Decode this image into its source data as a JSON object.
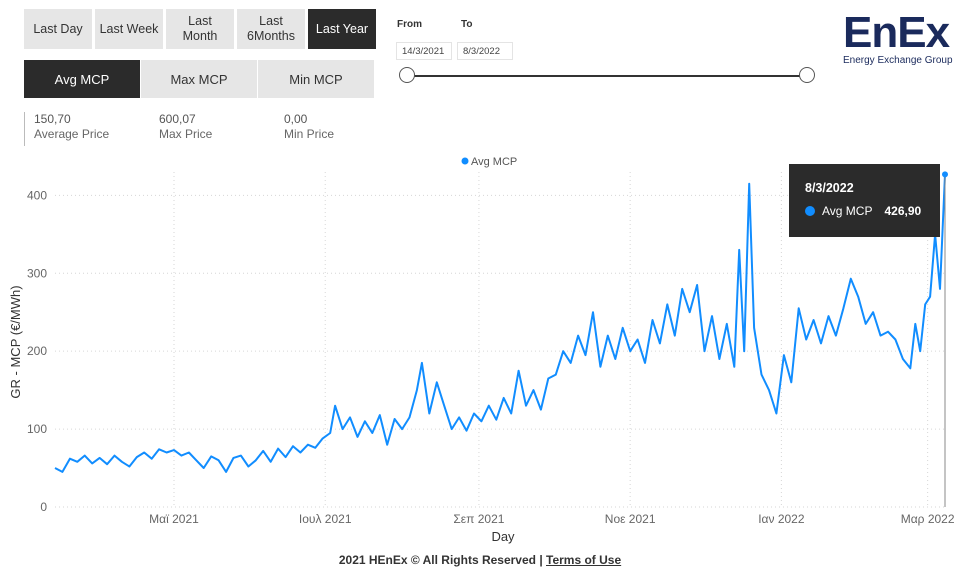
{
  "period_buttons": [
    {
      "label": "Last Day",
      "active": false
    },
    {
      "label": "Last Week",
      "active": false
    },
    {
      "label": "Last\nMonth",
      "active": false
    },
    {
      "label": "Last\n6Months",
      "active": false
    },
    {
      "label": "Last Year",
      "active": true
    }
  ],
  "metric_buttons": [
    {
      "label": "Avg MCP",
      "active": true
    },
    {
      "label": "Max MCP",
      "active": false
    },
    {
      "label": "Min MCP",
      "active": false
    }
  ],
  "stats": [
    {
      "value": "150,70",
      "label": "Average Price"
    },
    {
      "value": "600,07",
      "label": "Max Price"
    },
    {
      "value": "0,00",
      "label": "Min Price"
    }
  ],
  "range": {
    "from_label": "From",
    "to_label": "To",
    "from_value": "14/3/2021",
    "to_value": "8/3/2022"
  },
  "logo": {
    "main": "EnEx",
    "sub": "Energy Exchange Group"
  },
  "tooltip": {
    "date": "8/3/2022",
    "series": "Avg MCP",
    "value": "426,90"
  },
  "footer": {
    "text": "2021 HEnEx © All Rights Reserved | ",
    "link": "Terms of Use"
  },
  "colors": {
    "series": "#118dff",
    "dark": "#2b2b2b"
  },
  "chart_data": {
    "type": "line",
    "title": "",
    "xlabel": "Day",
    "ylabel": "GR - MCP (€/MWh)",
    "legend": "Avg MCP",
    "legend_position": "top-center",
    "grid": true,
    "ylim": [
      0,
      430
    ],
    "yticks": [
      0,
      100,
      200,
      300,
      400
    ],
    "xlim": [
      "2021-03-14",
      "2022-03-08"
    ],
    "xticks": [
      {
        "date": "2021-05-01",
        "label": "Μαϊ 2021"
      },
      {
        "date": "2021-07-01",
        "label": "Ιουλ 2021"
      },
      {
        "date": "2021-09-01",
        "label": "Σεπ 2021"
      },
      {
        "date": "2021-11-01",
        "label": "Νοε 2021"
      },
      {
        "date": "2022-01-01",
        "label": "Ιαν 2022"
      },
      {
        "date": "2022-03-01",
        "label": "Μαρ 2022"
      }
    ],
    "series": [
      {
        "name": "Avg MCP",
        "points": [
          [
            "2021-03-14",
            50
          ],
          [
            "2021-03-17",
            45
          ],
          [
            "2021-03-20",
            62
          ],
          [
            "2021-03-23",
            58
          ],
          [
            "2021-03-26",
            66
          ],
          [
            "2021-03-29",
            56
          ],
          [
            "2021-04-01",
            63
          ],
          [
            "2021-04-04",
            55
          ],
          [
            "2021-04-07",
            66
          ],
          [
            "2021-04-10",
            58
          ],
          [
            "2021-04-13",
            52
          ],
          [
            "2021-04-16",
            64
          ],
          [
            "2021-04-19",
            70
          ],
          [
            "2021-04-22",
            62
          ],
          [
            "2021-04-25",
            74
          ],
          [
            "2021-04-28",
            70
          ],
          [
            "2021-05-01",
            73
          ],
          [
            "2021-05-04",
            66
          ],
          [
            "2021-05-07",
            70
          ],
          [
            "2021-05-10",
            60
          ],
          [
            "2021-05-13",
            50
          ],
          [
            "2021-05-16",
            65
          ],
          [
            "2021-05-19",
            60
          ],
          [
            "2021-05-22",
            45
          ],
          [
            "2021-05-25",
            63
          ],
          [
            "2021-05-28",
            66
          ],
          [
            "2021-05-31",
            52
          ],
          [
            "2021-06-03",
            60
          ],
          [
            "2021-06-06",
            72
          ],
          [
            "2021-06-09",
            58
          ],
          [
            "2021-06-12",
            75
          ],
          [
            "2021-06-15",
            64
          ],
          [
            "2021-06-18",
            78
          ],
          [
            "2021-06-21",
            70
          ],
          [
            "2021-06-24",
            80
          ],
          [
            "2021-06-27",
            76
          ],
          [
            "2021-06-30",
            88
          ],
          [
            "2021-07-03",
            95
          ],
          [
            "2021-07-05",
            130
          ],
          [
            "2021-07-08",
            100
          ],
          [
            "2021-07-11",
            115
          ],
          [
            "2021-07-14",
            90
          ],
          [
            "2021-07-17",
            110
          ],
          [
            "2021-07-20",
            95
          ],
          [
            "2021-07-23",
            118
          ],
          [
            "2021-07-26",
            80
          ],
          [
            "2021-07-29",
            113
          ],
          [
            "2021-08-01",
            100
          ],
          [
            "2021-08-04",
            115
          ],
          [
            "2021-08-07",
            150
          ],
          [
            "2021-08-09",
            185
          ],
          [
            "2021-08-12",
            120
          ],
          [
            "2021-08-15",
            160
          ],
          [
            "2021-08-18",
            130
          ],
          [
            "2021-08-21",
            100
          ],
          [
            "2021-08-24",
            115
          ],
          [
            "2021-08-27",
            98
          ],
          [
            "2021-08-30",
            120
          ],
          [
            "2021-09-02",
            110
          ],
          [
            "2021-09-05",
            130
          ],
          [
            "2021-09-08",
            112
          ],
          [
            "2021-09-11",
            140
          ],
          [
            "2021-09-14",
            120
          ],
          [
            "2021-09-17",
            175
          ],
          [
            "2021-09-20",
            130
          ],
          [
            "2021-09-23",
            150
          ],
          [
            "2021-09-26",
            125
          ],
          [
            "2021-09-29",
            165
          ],
          [
            "2021-10-02",
            170
          ],
          [
            "2021-10-05",
            200
          ],
          [
            "2021-10-08",
            185
          ],
          [
            "2021-10-11",
            220
          ],
          [
            "2021-10-14",
            195
          ],
          [
            "2021-10-17",
            250
          ],
          [
            "2021-10-20",
            180
          ],
          [
            "2021-10-23",
            220
          ],
          [
            "2021-10-26",
            190
          ],
          [
            "2021-10-29",
            230
          ],
          [
            "2021-11-01",
            200
          ],
          [
            "2021-11-04",
            215
          ],
          [
            "2021-11-07",
            185
          ],
          [
            "2021-11-10",
            240
          ],
          [
            "2021-11-13",
            210
          ],
          [
            "2021-11-16",
            260
          ],
          [
            "2021-11-19",
            220
          ],
          [
            "2021-11-22",
            280
          ],
          [
            "2021-11-25",
            250
          ],
          [
            "2021-11-28",
            285
          ],
          [
            "2021-12-01",
            200
          ],
          [
            "2021-12-04",
            245
          ],
          [
            "2021-12-07",
            190
          ],
          [
            "2021-12-10",
            235
          ],
          [
            "2021-12-13",
            180
          ],
          [
            "2021-12-15",
            330
          ],
          [
            "2021-12-17",
            200
          ],
          [
            "2021-12-19",
            415
          ],
          [
            "2021-12-21",
            230
          ],
          [
            "2021-12-24",
            170
          ],
          [
            "2021-12-27",
            150
          ],
          [
            "2021-12-30",
            120
          ],
          [
            "2022-01-02",
            195
          ],
          [
            "2022-01-05",
            160
          ],
          [
            "2022-01-08",
            255
          ],
          [
            "2022-01-11",
            215
          ],
          [
            "2022-01-14",
            240
          ],
          [
            "2022-01-17",
            210
          ],
          [
            "2022-01-20",
            245
          ],
          [
            "2022-01-23",
            220
          ],
          [
            "2022-01-26",
            255
          ],
          [
            "2022-01-29",
            293
          ],
          [
            "2022-02-01",
            270
          ],
          [
            "2022-02-04",
            235
          ],
          [
            "2022-02-07",
            250
          ],
          [
            "2022-02-10",
            220
          ],
          [
            "2022-02-13",
            225
          ],
          [
            "2022-02-16",
            215
          ],
          [
            "2022-02-19",
            190
          ],
          [
            "2022-02-22",
            178
          ],
          [
            "2022-02-24",
            235
          ],
          [
            "2022-02-26",
            200
          ],
          [
            "2022-02-28",
            260
          ],
          [
            "2022-03-02",
            270
          ],
          [
            "2022-03-04",
            350
          ],
          [
            "2022-03-06",
            280
          ],
          [
            "2022-03-08",
            426.9
          ]
        ]
      }
    ]
  }
}
